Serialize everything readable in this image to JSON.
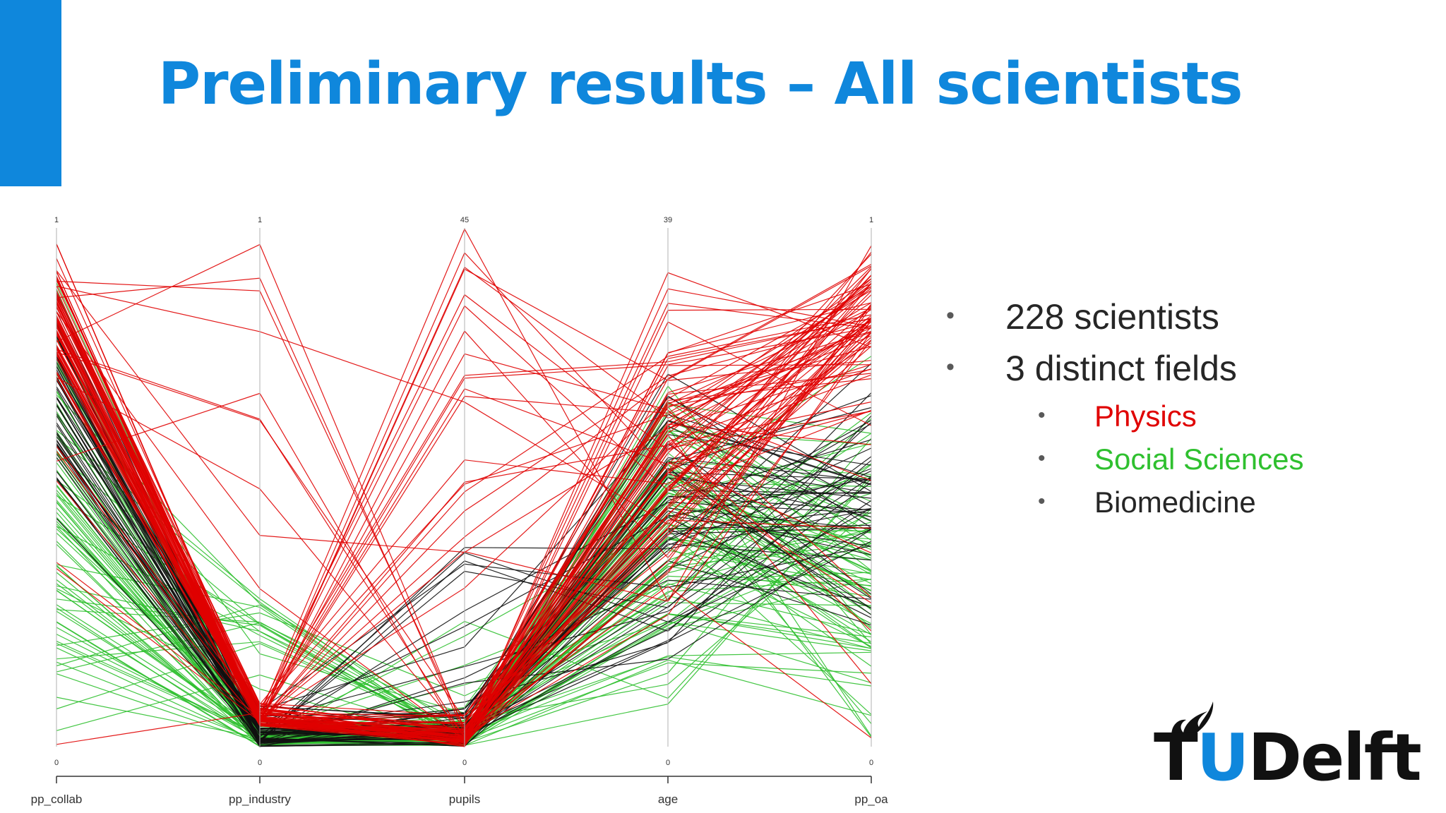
{
  "slide": {
    "title": "Preliminary results – All scientists",
    "accent_color": "#0f87dc"
  },
  "bullets": [
    {
      "text": "228 scientists"
    },
    {
      "text": "3 distinct fields"
    }
  ],
  "fields": [
    {
      "label": "Physics",
      "color": "#e00000"
    },
    {
      "label": "Social Sciences",
      "color": "#2fc02f"
    },
    {
      "label": "Biomedicine",
      "color": "#262626"
    }
  ],
  "logo": {
    "text": "TUDelft",
    "icon": "flame-icon"
  },
  "chart_data": {
    "type": "parallel-coordinates",
    "axes": [
      {
        "name": "pp_collab",
        "min": 0,
        "max": 1
      },
      {
        "name": "pp_industry",
        "min": 0,
        "max": 1
      },
      {
        "name": "pupils",
        "min": 0,
        "max": 45
      },
      {
        "name": "age",
        "min": 0,
        "max": 39
      },
      {
        "name": "pp_oa",
        "min": 0,
        "max": 1
      }
    ],
    "groups": [
      {
        "color": "#e00000",
        "count": 86
      },
      {
        "color": "#2fc02f",
        "count": 86
      },
      {
        "color": "#111111",
        "count": 56
      }
    ],
    "grid": false
  }
}
